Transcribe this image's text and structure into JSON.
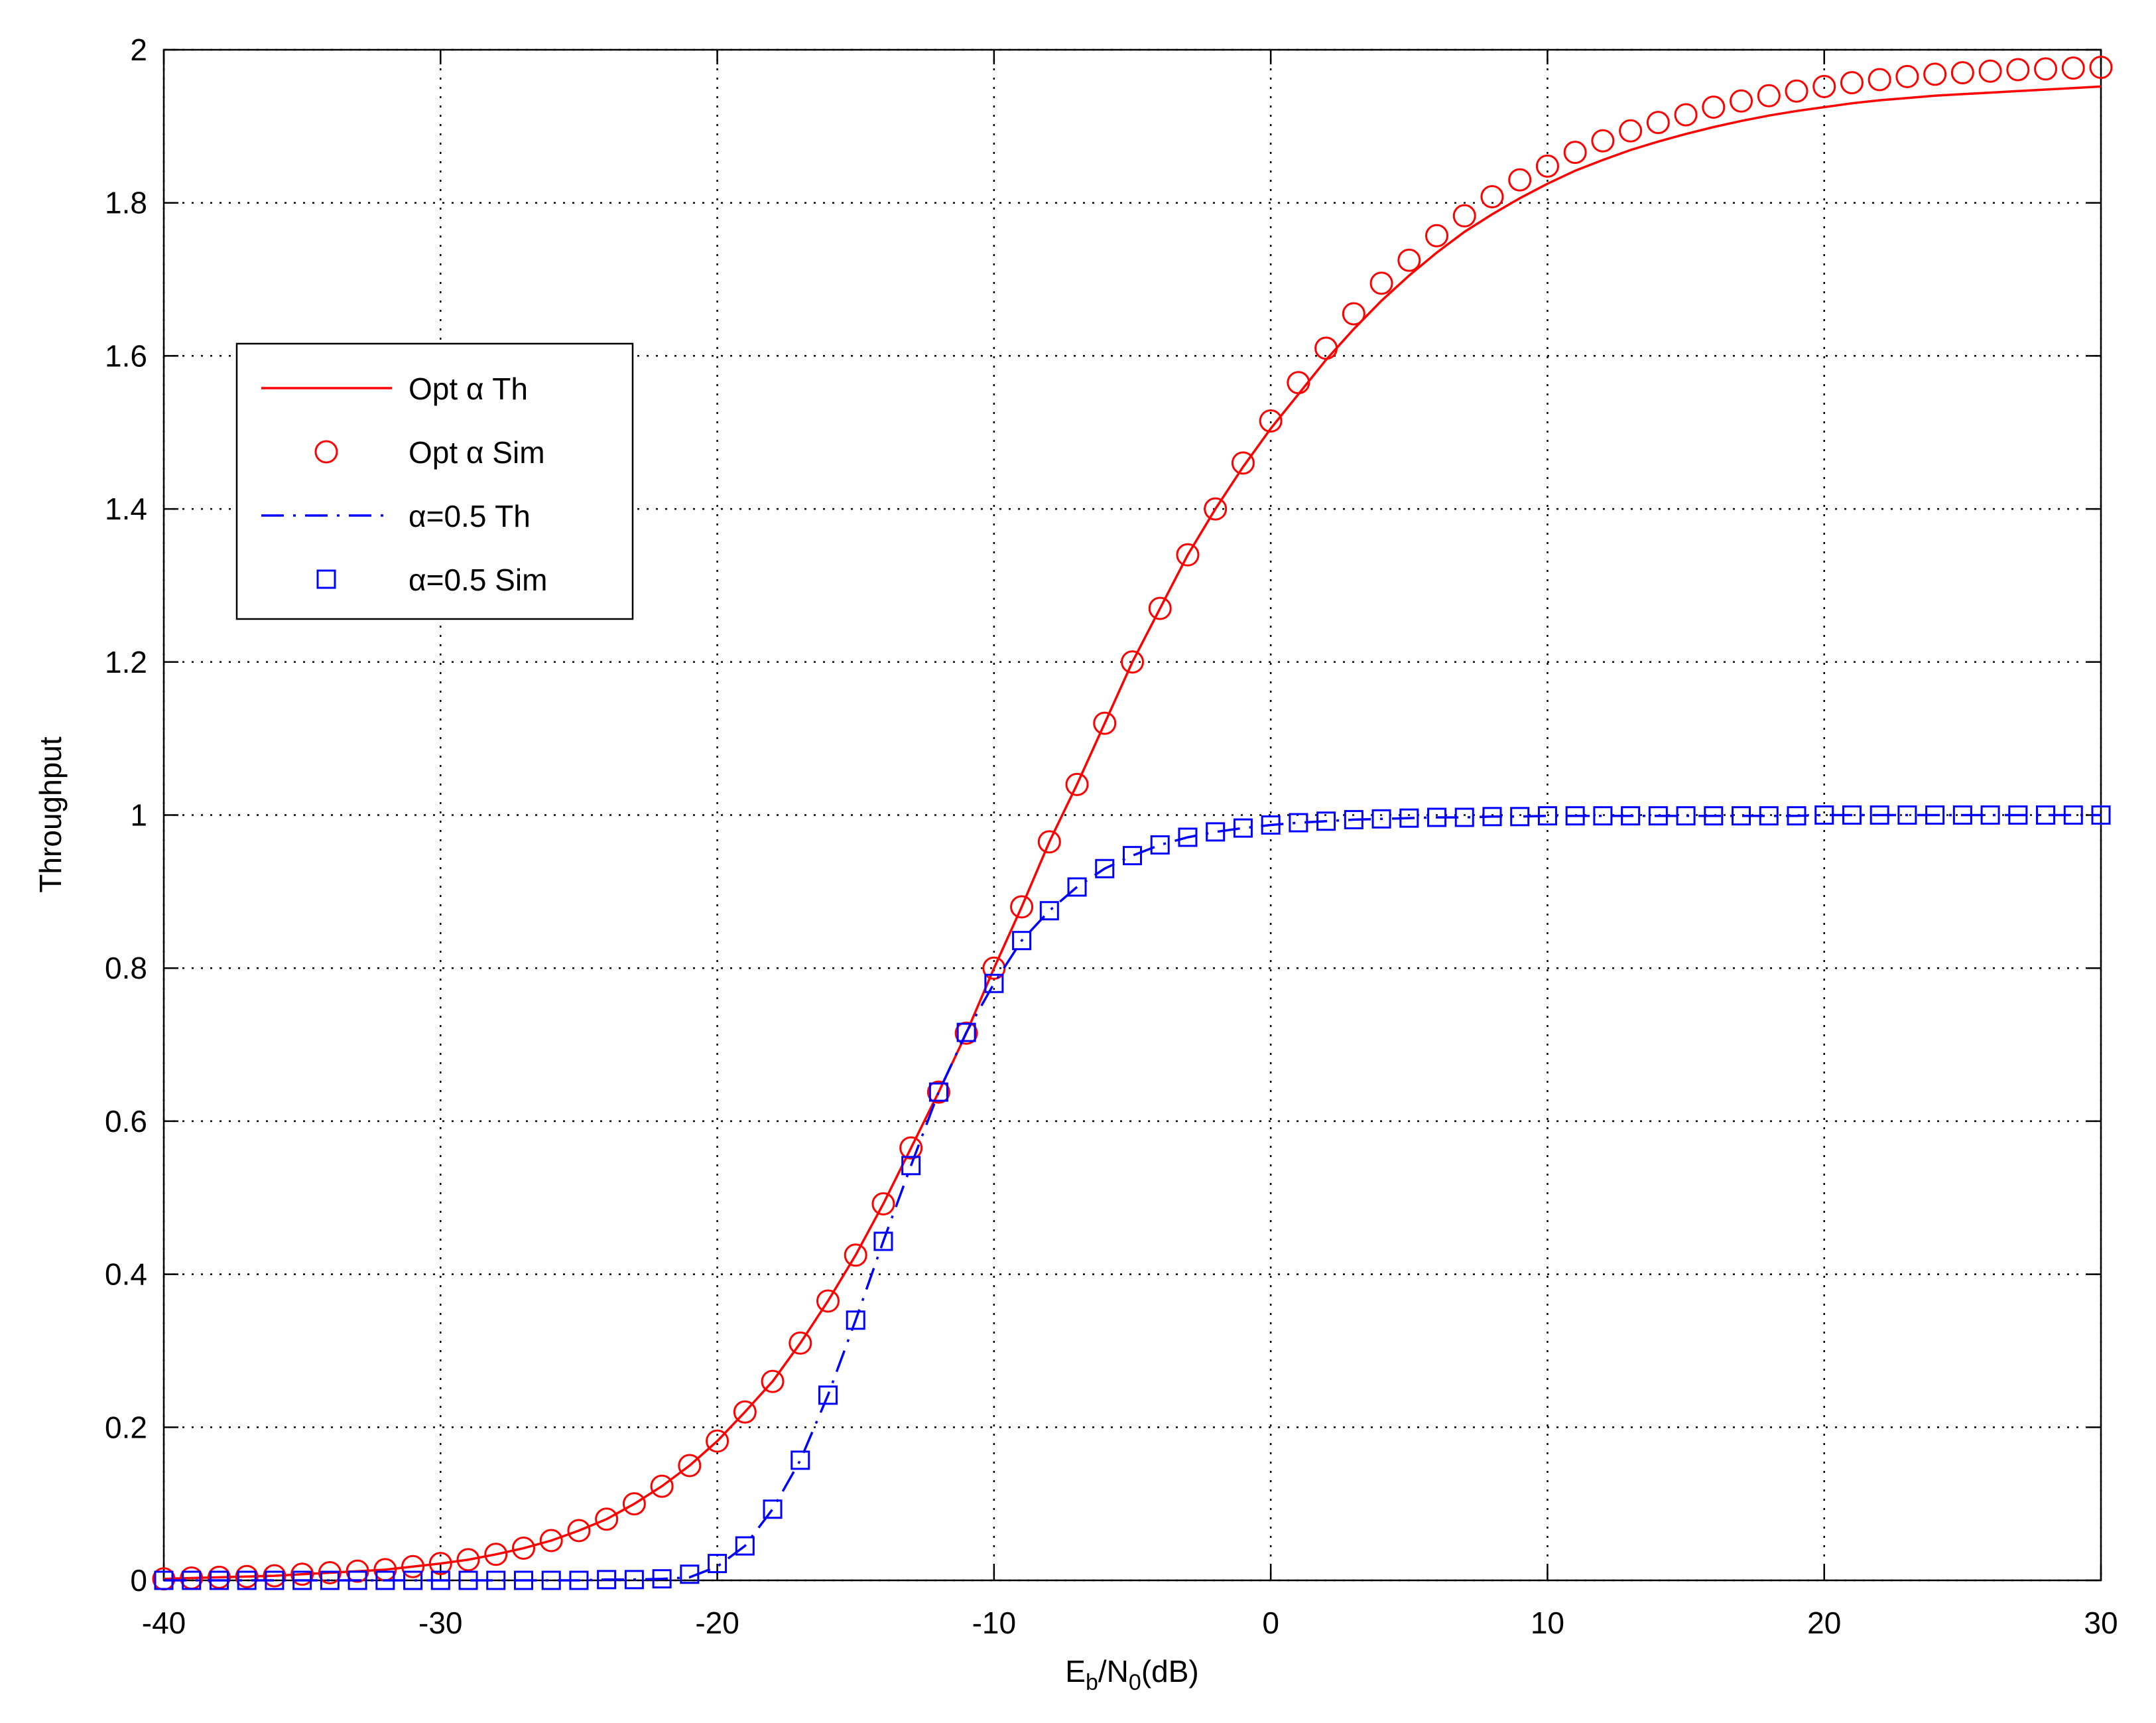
{
  "chart_data": {
    "type": "line",
    "xlabel": [
      "E",
      "b",
      "/N",
      "0",
      "(dB)"
    ],
    "ylabel": "Throughput",
    "x": [
      -40,
      -39,
      -38,
      -37,
      -36,
      -35,
      -34,
      -33,
      -32,
      -31,
      -30,
      -29,
      -28,
      -27,
      -26,
      -25,
      -24,
      -23,
      -22,
      -21,
      -20,
      -19,
      -18,
      -17,
      -16,
      -15,
      -14,
      -13,
      -12,
      -11,
      -10,
      -9,
      -8,
      -7,
      -6,
      -5,
      -4,
      -3,
      -2,
      -1,
      0,
      1,
      2,
      3,
      4,
      5,
      6,
      7,
      8,
      9,
      10,
      11,
      12,
      13,
      14,
      15,
      16,
      17,
      18,
      19,
      20,
      21,
      22,
      23,
      24,
      25,
      26,
      27,
      28,
      29,
      30
    ],
    "series": [
      {
        "name": "Opt α Th",
        "color": "#ff0000",
        "line": "solid",
        "marker": "none",
        "values": [
          0.002,
          0.003,
          0.004,
          0.005,
          0.006,
          0.008,
          0.01,
          0.012,
          0.014,
          0.018,
          0.022,
          0.027,
          0.034,
          0.042,
          0.052,
          0.065,
          0.08,
          0.1,
          0.123,
          0.15,
          0.182,
          0.22,
          0.26,
          0.31,
          0.365,
          0.425,
          0.492,
          0.565,
          0.638,
          0.715,
          0.8,
          0.88,
          0.965,
          1.04,
          1.12,
          1.2,
          1.27,
          1.34,
          1.4,
          1.455,
          1.505,
          1.55,
          1.595,
          1.635,
          1.672,
          1.705,
          1.735,
          1.762,
          1.785,
          1.806,
          1.825,
          1.842,
          1.856,
          1.869,
          1.88,
          1.89,
          1.899,
          1.907,
          1.914,
          1.92,
          1.925,
          1.93,
          1.934,
          1.937,
          1.94,
          1.942,
          1.944,
          1.946,
          1.948,
          1.95,
          1.952
        ]
      },
      {
        "name": "Opt α Sim",
        "color": "#ff0000",
        "line": "none",
        "marker": "circle",
        "values": [
          0.002,
          0.003,
          0.004,
          0.005,
          0.006,
          0.008,
          0.01,
          0.012,
          0.014,
          0.018,
          0.022,
          0.027,
          0.034,
          0.042,
          0.052,
          0.065,
          0.08,
          0.1,
          0.123,
          0.15,
          0.182,
          0.22,
          0.26,
          0.31,
          0.365,
          0.425,
          0.492,
          0.565,
          0.638,
          0.715,
          0.8,
          0.88,
          0.965,
          1.04,
          1.12,
          1.2,
          1.27,
          1.34,
          1.4,
          1.46,
          1.515,
          1.565,
          1.61,
          1.655,
          1.695,
          1.725,
          1.757,
          1.783,
          1.808,
          1.83,
          1.848,
          1.866,
          1.881,
          1.894,
          1.905,
          1.915,
          1.925,
          1.933,
          1.94,
          1.946,
          1.952,
          1.957,
          1.961,
          1.965,
          1.968,
          1.97,
          1.972,
          1.974,
          1.975,
          1.976,
          1.977
        ]
      },
      {
        "name": "α=0.5 Th",
        "color": "#0000ff",
        "line": "dashdot",
        "marker": "none",
        "values": [
          0,
          0,
          0,
          0,
          0,
          0,
          0,
          0,
          0,
          0,
          0,
          0,
          0,
          0,
          0,
          0,
          0.001,
          0.001,
          0.002,
          0.004,
          0.018,
          0.045,
          0.093,
          0.157,
          0.242,
          0.34,
          0.443,
          0.542,
          0.638,
          0.716,
          0.78,
          0.836,
          0.875,
          0.906,
          0.93,
          0.947,
          0.961,
          0.971,
          0.978,
          0.983,
          0.987,
          0.99,
          0.992,
          0.994,
          0.995,
          0.996,
          0.997,
          0.997,
          0.998,
          0.998,
          0.999,
          0.999,
          0.999,
          0.999,
          0.999,
          0.999,
          0.999,
          0.999,
          0.999,
          0.999,
          1,
          1,
          1,
          1,
          1,
          1,
          1,
          1,
          1,
          1,
          1
        ]
      },
      {
        "name": "α=0.5 Sim",
        "color": "#0000ff",
        "line": "none",
        "marker": "square",
        "values": [
          0,
          0,
          0,
          0,
          0,
          0,
          0,
          0,
          0,
          0,
          0,
          0,
          0,
          0,
          0,
          0,
          0.001,
          0.001,
          0.002,
          0.008,
          0.022,
          0.045,
          0.093,
          0.157,
          0.242,
          0.34,
          0.443,
          0.542,
          0.638,
          0.716,
          0.78,
          0.836,
          0.875,
          0.906,
          0.93,
          0.947,
          0.961,
          0.971,
          0.978,
          0.983,
          0.987,
          0.99,
          0.992,
          0.994,
          0.995,
          0.996,
          0.997,
          0.997,
          0.998,
          0.998,
          0.999,
          0.999,
          0.999,
          0.999,
          0.999,
          0.999,
          0.999,
          0.999,
          0.999,
          0.999,
          1,
          1,
          1,
          1,
          1,
          1,
          1,
          1,
          1,
          1,
          1
        ]
      }
    ],
    "xlim": [
      -40,
      30
    ],
    "xticks": [
      -40,
      -30,
      -20,
      -10,
      0,
      10,
      20,
      30
    ],
    "ylim": [
      0,
      2
    ],
    "yticks": [
      0,
      0.2,
      0.4,
      0.6,
      0.8,
      1,
      1.2,
      1.4,
      1.6,
      1.8,
      2
    ],
    "grid": true,
    "legend": "upper left"
  }
}
